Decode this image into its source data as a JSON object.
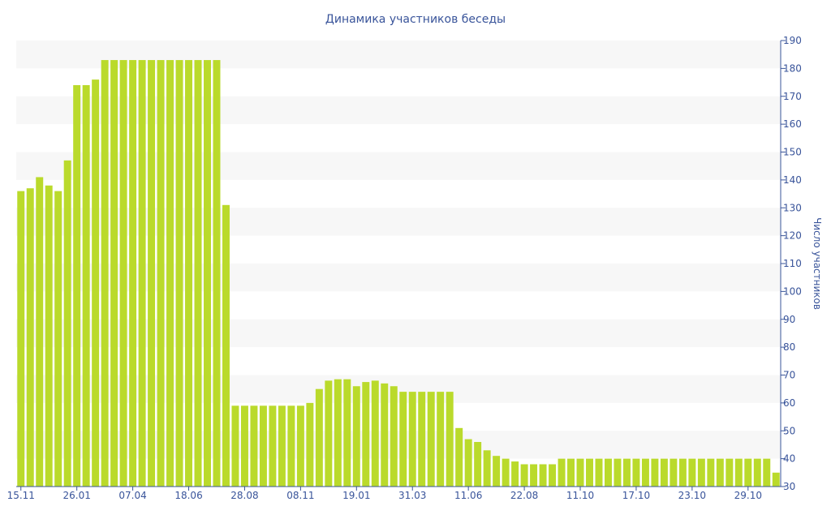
{
  "chart_data": {
    "type": "bar",
    "title": "Динамика участников беседы",
    "xlabel": "",
    "ylabel": "Число участников",
    "ylim": [
      30,
      190
    ],
    "yticks": [
      30,
      40,
      50,
      60,
      70,
      80,
      90,
      100,
      110,
      120,
      130,
      140,
      150,
      160,
      170,
      180,
      190
    ],
    "x_ticks": [
      {
        "label": "15.11",
        "index": 0
      },
      {
        "label": "26.01",
        "index": 6
      },
      {
        "label": "07.04",
        "index": 12
      },
      {
        "label": "18.06",
        "index": 18
      },
      {
        "label": "28.08",
        "index": 24
      },
      {
        "label": "08.11",
        "index": 30
      },
      {
        "label": "19.01",
        "index": 36
      },
      {
        "label": "31.03",
        "index": 42
      },
      {
        "label": "11.06",
        "index": 48
      },
      {
        "label": "22.08",
        "index": 54
      },
      {
        "label": "11.10",
        "index": 60
      },
      {
        "label": "17.10",
        "index": 66
      },
      {
        "label": "23.10",
        "index": 72
      },
      {
        "label": "29.10",
        "index": 78
      }
    ],
    "values": [
      136,
      137,
      141,
      138,
      136,
      147,
      174,
      174,
      176,
      183,
      183,
      183,
      183,
      183,
      183,
      183,
      183,
      183,
      183,
      183,
      183,
      183,
      131,
      59,
      59,
      59,
      59,
      59,
      59,
      59,
      59,
      60,
      65,
      68,
      68.5,
      68.5,
      66,
      67.5,
      68,
      67,
      66,
      64,
      64,
      64,
      64,
      64,
      64,
      51,
      47,
      46,
      43,
      41,
      40,
      39,
      38,
      38,
      38,
      38,
      40,
      40,
      40,
      40,
      40,
      40,
      40,
      40,
      40,
      40,
      40,
      40,
      40,
      40,
      40,
      40,
      40,
      40,
      40,
      40,
      40,
      40,
      40,
      35
    ],
    "grid": true,
    "legend": "none",
    "bar_color": "#bada2b",
    "band_color": "#f7f7f7",
    "text_color": "#39549a"
  }
}
